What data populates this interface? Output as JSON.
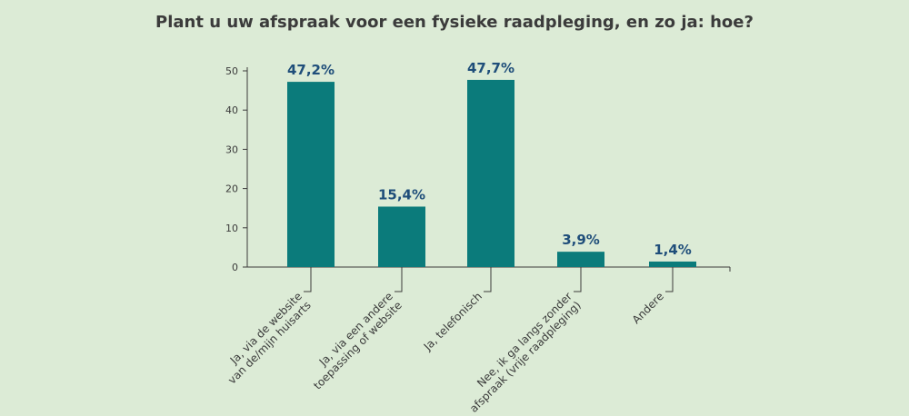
{
  "chart_data": {
    "type": "bar",
    "title": "Plant u uw afspraak voor een fysieke raadpleging, en zo ja: hoe?",
    "categories": [
      [
        "Ja, via de website",
        "van de/mijn huisarts"
      ],
      [
        "Ja, via een andere",
        "toepassing of website"
      ],
      [
        "Ja, telefonisch"
      ],
      [
        "Nee, ik ga langs zonder",
        "afspraak (vrije raadpleging)"
      ],
      [
        "Andere"
      ]
    ],
    "values": [
      47.2,
      15.4,
      47.7,
      3.9,
      1.4
    ],
    "value_labels": [
      "47,2%",
      "15,4%",
      "47,7%",
      "3,9%",
      "1,4%"
    ],
    "ylim": [
      0,
      50
    ],
    "yticks": [
      0,
      10,
      20,
      30,
      40,
      50
    ],
    "xlabel": "",
    "ylabel": "",
    "grid": false,
    "bar_color": "#0b7b7b",
    "value_label_color": "#1f4e7a",
    "background_color": "#dcebd6"
  }
}
